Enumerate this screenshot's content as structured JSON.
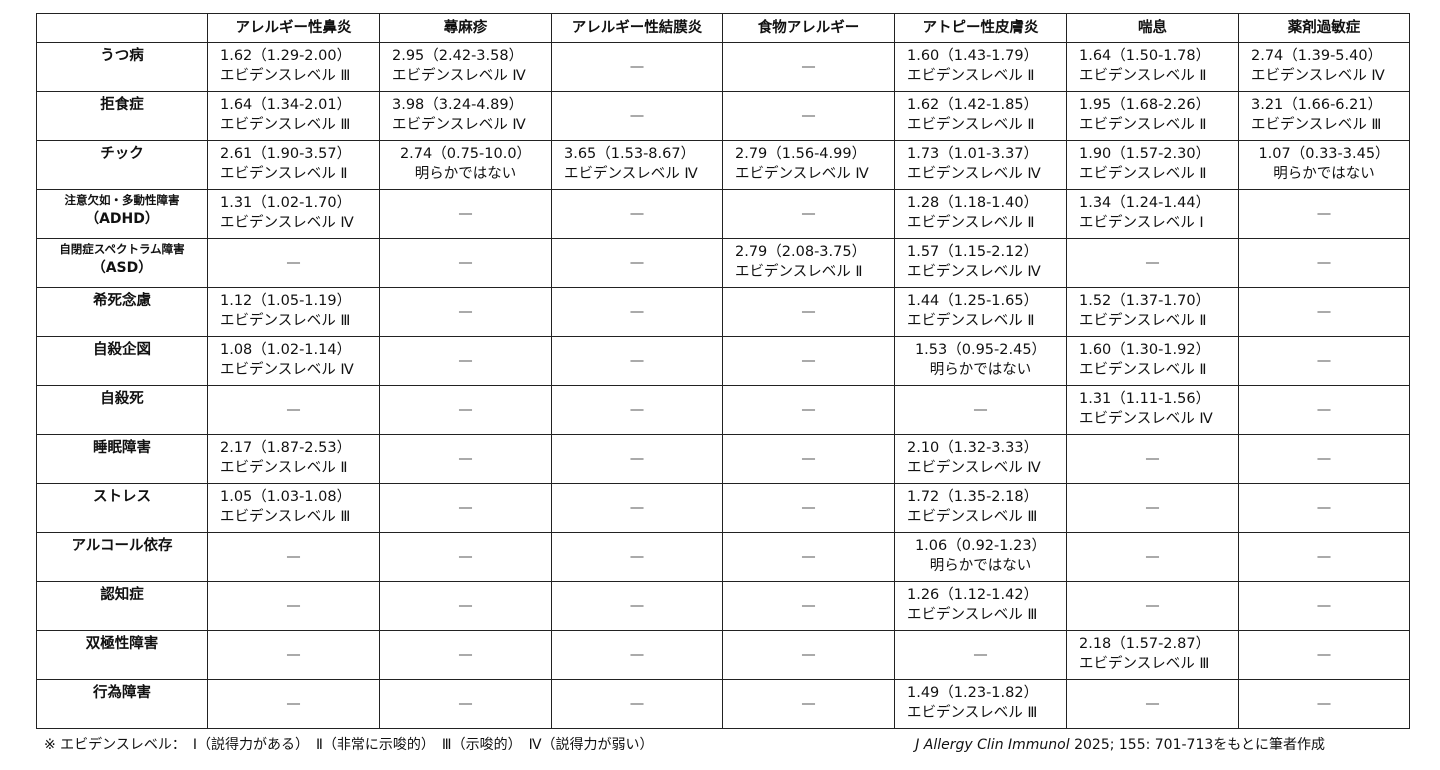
{
  "columns": [
    "",
    "アレルギー性鼻炎",
    "蕁麻疹",
    "アレルギー性結膜炎",
    "食物アレルギー",
    "アトピー性皮膚炎",
    "喘息",
    "薬剤過敏症"
  ],
  "dash": "—",
  "rows": [
    {
      "label": [
        "うつ病"
      ],
      "cells": [
        [
          "1.62（1.29-2.00）",
          "エビデンスレベル Ⅲ"
        ],
        [
          "2.95（2.42-3.58）",
          "エビデンスレベル Ⅳ"
        ],
        null,
        null,
        [
          "1.60（1.43-1.79）",
          "エビデンスレベル Ⅱ"
        ],
        [
          "1.64（1.50-1.78）",
          "エビデンスレベル Ⅱ"
        ],
        [
          "2.74（1.39-5.40）",
          "エビデンスレベル Ⅳ"
        ]
      ]
    },
    {
      "label": [
        "拒食症"
      ],
      "cells": [
        [
          "1.64（1.34-2.01）",
          "エビデンスレベル Ⅲ"
        ],
        [
          "3.98（3.24-4.89）",
          "エビデンスレベル Ⅳ"
        ],
        null,
        null,
        [
          "1.62（1.42-1.85）",
          "エビデンスレベル Ⅱ"
        ],
        [
          "1.95（1.68-2.26）",
          "エビデンスレベル Ⅱ"
        ],
        [
          "3.21（1.66-6.21）",
          "エビデンスレベル Ⅲ"
        ]
      ]
    },
    {
      "label": [
        "チック"
      ],
      "cells": [
        [
          "2.61（1.90-3.57）",
          "エビデンスレベル Ⅱ"
        ],
        [
          "2.74（0.75-10.0）",
          "明らかではない"
        ],
        [
          "3.65（1.53-8.67）",
          "エビデンスレベル Ⅳ"
        ],
        [
          "2.79（1.56-4.99）",
          "エビデンスレベル Ⅳ"
        ],
        [
          "1.73（1.01-3.37）",
          "エビデンスレベル Ⅳ"
        ],
        [
          "1.90（1.57-2.30）",
          "エビデンスレベル Ⅱ"
        ],
        [
          "1.07（0.33-3.45）",
          "明らかではない"
        ]
      ]
    },
    {
      "label": [
        "注意欠如・多動性障害",
        "（ADHD）"
      ],
      "cells": [
        [
          "1.31（1.02-1.70）",
          "エビデンスレベル Ⅳ"
        ],
        null,
        null,
        null,
        [
          "1.28（1.18-1.40）",
          "エビデンスレベル Ⅱ"
        ],
        [
          "1.34（1.24-1.44）",
          "エビデンスレベル Ⅰ"
        ],
        null
      ]
    },
    {
      "label": [
        "自閉症スペクトラム障害",
        "（ASD）"
      ],
      "cells": [
        null,
        null,
        null,
        [
          "2.79（2.08-3.75）",
          "エビデンスレベル Ⅱ"
        ],
        [
          "1.57（1.15-2.12）",
          "エビデンスレベル Ⅳ"
        ],
        null,
        null
      ]
    },
    {
      "label": [
        "希死念慮"
      ],
      "cells": [
        [
          "1.12（1.05-1.19）",
          "エビデンスレベル Ⅲ"
        ],
        null,
        null,
        null,
        [
          "1.44（1.25-1.65）",
          "エビデンスレベル Ⅱ"
        ],
        [
          "1.52（1.37-1.70）",
          "エビデンスレベル Ⅱ"
        ],
        null
      ]
    },
    {
      "label": [
        "自殺企図"
      ],
      "cells": [
        [
          "1.08（1.02-1.14）",
          "エビデンスレベル Ⅳ"
        ],
        null,
        null,
        null,
        [
          "1.53（0.95-2.45）",
          "明らかではない"
        ],
        [
          "1.60（1.30-1.92）",
          "エビデンスレベル Ⅱ"
        ],
        null
      ]
    },
    {
      "label": [
        "自殺死"
      ],
      "cells": [
        null,
        null,
        null,
        null,
        null,
        [
          "1.31（1.11-1.56）",
          "エビデンスレベル Ⅳ"
        ],
        null
      ]
    },
    {
      "label": [
        "睡眠障害"
      ],
      "cells": [
        [
          "2.17（1.87-2.53）",
          "エビデンスレベル Ⅱ"
        ],
        null,
        null,
        null,
        [
          "2.10（1.32-3.33）",
          "エビデンスレベル Ⅳ"
        ],
        null,
        null
      ]
    },
    {
      "label": [
        "ストレス"
      ],
      "cells": [
        [
          "1.05（1.03-1.08）",
          "エビデンスレベル Ⅲ"
        ],
        null,
        null,
        null,
        [
          "1.72（1.35-2.18）",
          "エビデンスレベル Ⅲ"
        ],
        null,
        null
      ]
    },
    {
      "label": [
        "アルコール依存"
      ],
      "cells": [
        null,
        null,
        null,
        null,
        [
          "1.06（0.92-1.23）",
          "明らかではない"
        ],
        null,
        null
      ]
    },
    {
      "label": [
        "認知症"
      ],
      "cells": [
        null,
        null,
        null,
        null,
        [
          "1.26（1.12-1.42）",
          "エビデンスレベル Ⅲ"
        ],
        null,
        null
      ]
    },
    {
      "label": [
        "双極性障害"
      ],
      "cells": [
        null,
        null,
        null,
        null,
        null,
        [
          "2.18（1.57-2.87）",
          "エビデンスレベル Ⅲ"
        ],
        null
      ]
    },
    {
      "label": [
        "行為障害"
      ],
      "cells": [
        null,
        null,
        null,
        null,
        [
          "1.49（1.23-1.82）",
          "エビデンスレベル Ⅲ"
        ],
        null,
        null
      ]
    }
  ],
  "footer": {
    "legend": "※ エビデンスレベル：　Ⅰ（説得力がある）　Ⅱ（非常に示唆的）　Ⅲ（示唆的）　Ⅳ（説得力が弱い）",
    "source_journal": "J Allergy Clin Immunol",
    "source_rest": " 2025; 155: 701-713をもとに筆者作成"
  }
}
